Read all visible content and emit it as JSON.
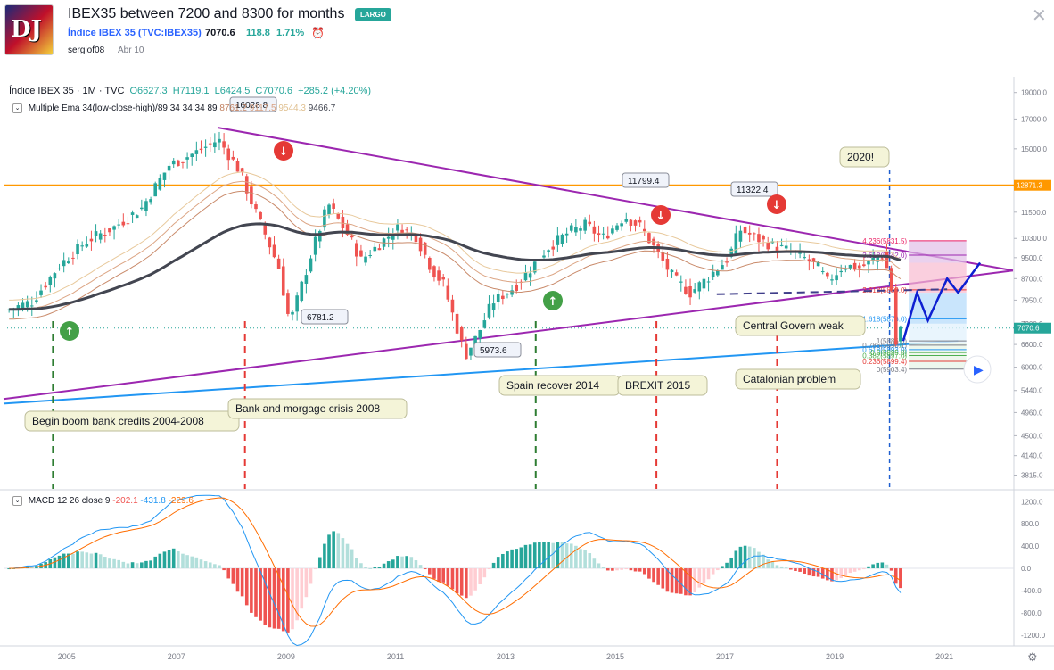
{
  "header": {
    "title": "IBEX35 between 7200 and 8300 for months",
    "badge": "LARGO",
    "symbol": "Índice IBEX 35 (TVC:IBEX35)",
    "price": "7070.6",
    "change": "118.8",
    "change_pct": "1.71%",
    "author": "sergiof08",
    "date": "Abr 10",
    "logo_text": "DJ"
  },
  "legend": {
    "name": "Índice IBEX 35 · 1M · TVC",
    "o": "O6627.3",
    "h": "H7119.1",
    "l": "L6424.5",
    "c": "C7070.6",
    "chg": "+285.2 (+4.20%)",
    "ema_label": "Multiple Ema 34(low-close-high)/89 34 34 34 89",
    "ema_values": [
      "8761.2",
      "9117.5",
      "9544.3",
      "9466.7"
    ],
    "macd_label": "MACD 12 26 close 9",
    "macd_values": [
      "-202.1",
      "-431.8",
      "-229.6"
    ]
  },
  "colors": {
    "up": "#26a69a",
    "down": "#ef5350",
    "triangle": "#9c27b0",
    "support": "#2196f3",
    "resistance": "#ff9800",
    "ema_slow": "#434651",
    "arrow_blue": "#0d1fd1"
  },
  "chart_data": [
    {
      "type": "candlestick",
      "title": "",
      "x_ticks": [
        "2005",
        "2007",
        "2009",
        "2011",
        "2013",
        "2015",
        "2017",
        "2019",
        "2021"
      ],
      "y_ticks": [
        "19000.0",
        "17000.0",
        "15000.0",
        "13000.0",
        "11500.0",
        "10300.0",
        "9500.0",
        "8700.0",
        "7950.0",
        "7200.0",
        "6600.0",
        "6000.0",
        "5440.0",
        "4960.0",
        "4500.0",
        "4140.0",
        "3815.0"
      ],
      "scale": "log",
      "ylim": [
        3600,
        20000
      ],
      "xlim": [
        2003.9,
        2022.3
      ],
      "horizontal_level": "12871.3",
      "last_price_label": "7070.6",
      "price_labels": [
        "16028.8",
        "11799.4",
        "11322.4",
        "6781.2",
        "5973.6"
      ],
      "annotations": [
        "Begin boom bank credits 2004-2008",
        "Bank and morgage crisis 2008",
        "Spain recover 2014",
        "BREXIT 2015",
        "Central Govern weak",
        "Catalonian problem",
        "2020!"
      ],
      "fib_levels": [
        "4.236(5831.5)",
        "3.618(5842.0)",
        "2.618(5859.0)",
        "1.618(5876.0)",
        "1(5886.5)",
        "0.786(5890.1)",
        "0.618(5893.0)",
        "0.5(5895.0)",
        "0.382(5897.0)",
        "0.236(5899.4)",
        "0(5903.4)"
      ],
      "series": [
        {
          "name": "IBEX 35",
          "points": [
            [
              2004.0,
              7600
            ],
            [
              2004.5,
              7900
            ],
            [
              2005.0,
              9200
            ],
            [
              2005.5,
              10200
            ],
            [
              2006.0,
              10800
            ],
            [
              2006.5,
              11700
            ],
            [
              2007.0,
              14000
            ],
            [
              2007.5,
              14800
            ],
            [
              2007.9,
              15600
            ],
            [
              2008.3,
              13600
            ],
            [
              2008.5,
              12000
            ],
            [
              2008.8,
              10200
            ],
            [
              2009.0,
              9100
            ],
            [
              2009.2,
              7200
            ],
            [
              2009.6,
              9700
            ],
            [
              2009.9,
              11900
            ],
            [
              2010.3,
              10300
            ],
            [
              2010.5,
              9400
            ],
            [
              2010.9,
              10200
            ],
            [
              2011.2,
              10800
            ],
            [
              2011.5,
              10400
            ],
            [
              2011.8,
              9000
            ],
            [
              2012.0,
              8500
            ],
            [
              2012.4,
              6300
            ],
            [
              2012.6,
              6800
            ],
            [
              2012.9,
              7900
            ],
            [
              2013.3,
              8400
            ],
            [
              2013.6,
              9100
            ],
            [
              2013.9,
              9900
            ],
            [
              2014.3,
              10600
            ],
            [
              2014.6,
              10900
            ],
            [
              2014.9,
              10300
            ],
            [
              2015.3,
              11300
            ],
            [
              2015.6,
              10800
            ],
            [
              2015.9,
              9700
            ],
            [
              2016.2,
              8700
            ],
            [
              2016.5,
              8200
            ],
            [
              2016.8,
              8700
            ],
            [
              2017.2,
              9500
            ],
            [
              2017.4,
              10700
            ],
            [
              2017.8,
              10200
            ],
            [
              2018.0,
              10000
            ],
            [
              2018.4,
              9700
            ],
            [
              2018.8,
              9200
            ],
            [
              2019.0,
              8600
            ],
            [
              2019.3,
              9200
            ],
            [
              2019.6,
              9100
            ],
            [
              2019.9,
              9500
            ],
            [
              2020.0,
              9600
            ],
            [
              2020.15,
              8700
            ],
            [
              2020.25,
              6600
            ],
            [
              2020.3,
              7070
            ]
          ]
        },
        {
          "name": "MACD",
          "ylim": [
            -1300,
            1350
          ],
          "y_ticks": [
            "1200.0",
            "800.0",
            "400.0",
            "0.0",
            "-400.0",
            "-800.0",
            "-1200.0"
          ]
        }
      ]
    }
  ]
}
